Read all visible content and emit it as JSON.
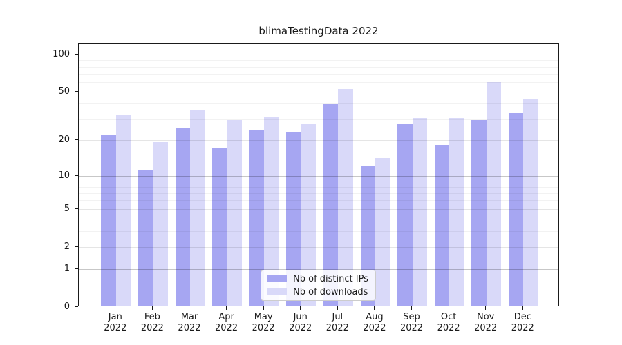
{
  "title": "blimaTestingData 2022",
  "chart_data": {
    "type": "bar",
    "title": "blimaTestingData 2022",
    "categories": [
      "Jan",
      "Feb",
      "Mar",
      "Apr",
      "May",
      "Jun",
      "Jul",
      "Aug",
      "Sep",
      "Oct",
      "Nov",
      "Dec"
    ],
    "x_year_suffix": "2022",
    "series": [
      {
        "name": "Nb of distinct IPs",
        "color": "#a6a6f2",
        "values": [
          22,
          11,
          25,
          17,
          24,
          23,
          39,
          12,
          27,
          18,
          29,
          33
        ]
      },
      {
        "name": "Nb of downloads",
        "color": "#d9d9f9",
        "values": [
          32,
          19,
          35,
          29,
          31,
          27,
          52,
          14,
          30,
          30,
          59,
          43
        ]
      }
    ],
    "xlabel": "",
    "ylabel": "",
    "y_scale": "log1p",
    "ylim": [
      0,
      122
    ],
    "y_ticks_major": [
      0,
      1,
      2,
      5,
      10,
      20,
      50,
      100
    ],
    "y_ticks_minor": [
      3,
      4,
      6,
      7,
      8,
      9,
      30,
      40,
      60,
      70,
      80,
      90
    ],
    "y_ticks_emphasized": [
      1,
      10
    ],
    "grid": true,
    "grid_on_top_of_bars": true,
    "legend_position": "lower center inside",
    "colors": {
      "axis": "#1a1a1a",
      "text": "#1a1a1a",
      "grid_minor": "rgba(0,0,0,0.05)",
      "grid_major": "rgba(0,0,0,0.10)",
      "grid_emphasized": "rgba(0,0,0,0.22)",
      "legend_border": "#cccccc"
    }
  }
}
